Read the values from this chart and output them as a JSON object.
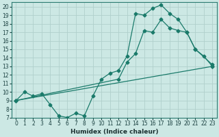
{
  "xlabel": "Humidex (Indice chaleur)",
  "bg_color": "#cce8e4",
  "grid_color": "#b0d0cc",
  "line_color": "#1a7a6a",
  "xlim": [
    -0.5,
    23.5
  ],
  "ylim": [
    7,
    20.5
  ],
  "yticks": [
    7,
    8,
    9,
    10,
    11,
    12,
    13,
    14,
    15,
    16,
    17,
    18,
    19,
    20
  ],
  "xticks": [
    0,
    1,
    2,
    3,
    4,
    5,
    6,
    7,
    8,
    9,
    10,
    11,
    12,
    13,
    14,
    15,
    16,
    17,
    18,
    19,
    20,
    21,
    22,
    23
  ],
  "line1_x": [
    0,
    1,
    2,
    3,
    4,
    5,
    6,
    7,
    8,
    9,
    10,
    11,
    12,
    13,
    14,
    15,
    16,
    17,
    18,
    19,
    20,
    21,
    22,
    23
  ],
  "line1_y": [
    9.0,
    10.0,
    9.5,
    9.8,
    8.5,
    7.2,
    7.0,
    7.5,
    7.2,
    9.5,
    11.5,
    12.2,
    12.5,
    14.2,
    19.2,
    19.0,
    19.8,
    20.2,
    19.2,
    18.5,
    17.0,
    15.0,
    14.2,
    13.0
  ],
  "line2_x": [
    0,
    12,
    13,
    14,
    15,
    16,
    17,
    18,
    19,
    20,
    21,
    23
  ],
  "line2_y": [
    9.0,
    11.5,
    13.5,
    14.5,
    17.2,
    17.0,
    18.5,
    17.5,
    17.2,
    17.0,
    15.0,
    13.2
  ],
  "line3_x": [
    0,
    23
  ],
  "line3_y": [
    9.0,
    13.0
  ],
  "markersize": 2.5,
  "linewidth": 0.9,
  "tick_labelsize": 5.5,
  "xlabel_fontsize": 6.5
}
